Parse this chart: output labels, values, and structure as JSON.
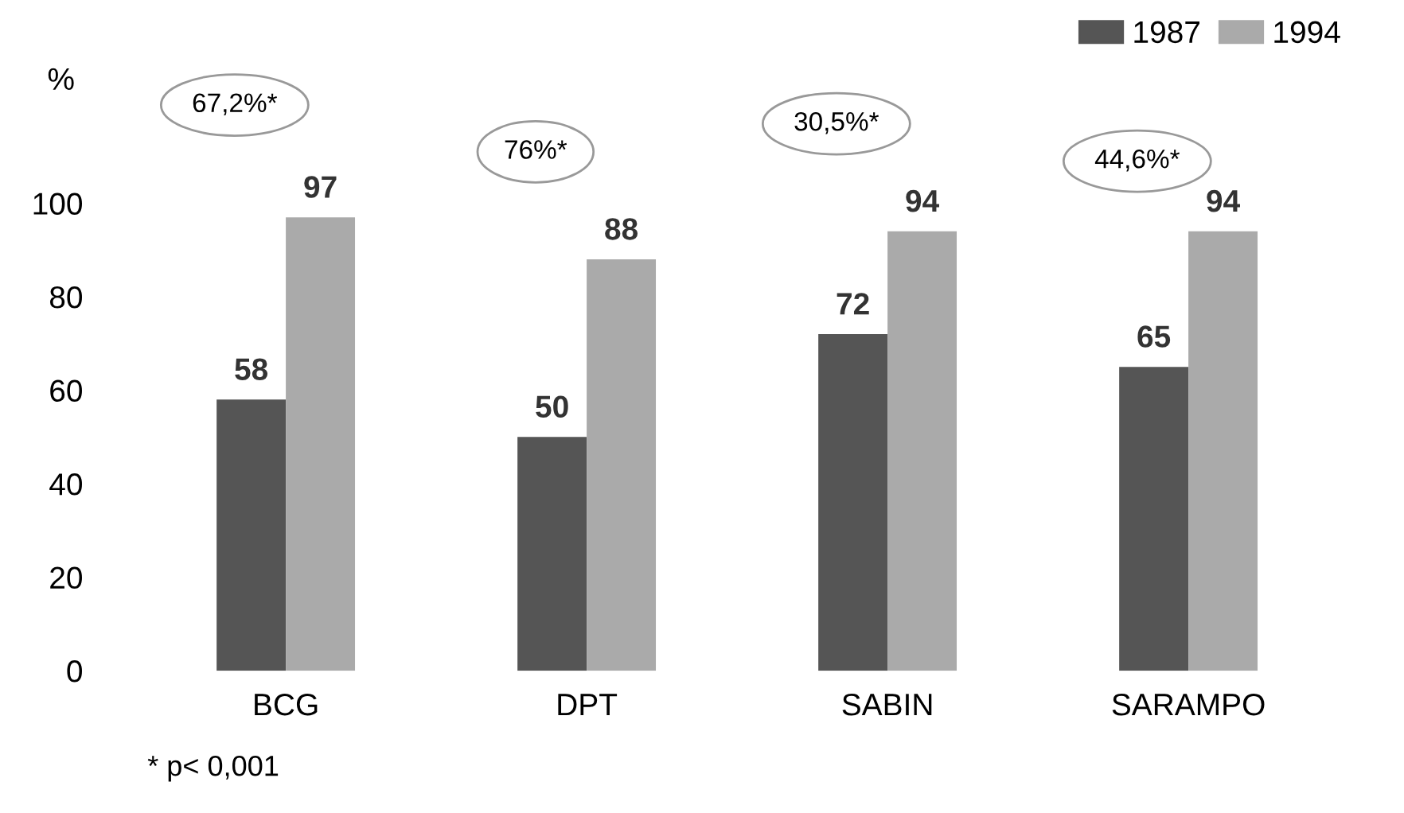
{
  "chart_data": {
    "type": "bar",
    "ylabel": "%",
    "categories": [
      "BCG",
      "DPT",
      "SABIN",
      "SARAMPO"
    ],
    "series": [
      {
        "name": "1987",
        "color": "#555555",
        "values": [
          58,
          50,
          72,
          65
        ]
      },
      {
        "name": "1994",
        "color": "#aaaaaa",
        "values": [
          97,
          88,
          94,
          94
        ]
      }
    ],
    "ylim": [
      0,
      100
    ],
    "yticks": [
      0,
      20,
      40,
      60,
      80,
      100
    ],
    "grid": false,
    "legend": "top right",
    "data_labels": true,
    "annotations": [
      "67,2%*",
      "76%*",
      "30,5%*",
      "44,6%*",
      "* p< 0,001"
    ]
  }
}
